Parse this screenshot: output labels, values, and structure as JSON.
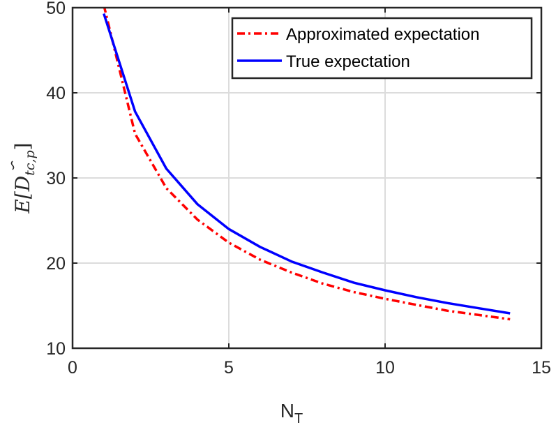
{
  "chart_data": {
    "type": "line",
    "title": "",
    "xlabel": "N",
    "xlabel_sub": "T",
    "ylabel": "E[",
    "ylabel_symbol": "D",
    "ylabel_sub": "tc,p",
    "ylabel_close": "]",
    "xlim": [
      0,
      15
    ],
    "ylim": [
      10,
      50
    ],
    "xticks": [
      0,
      5,
      10,
      15
    ],
    "yticks": [
      10,
      20,
      30,
      40,
      50
    ],
    "grid": true,
    "legend_position": "top-right",
    "x": [
      1,
      2,
      3,
      4,
      5,
      6,
      7,
      8,
      9,
      10,
      11,
      12,
      13,
      14
    ],
    "series": [
      {
        "name": "Approximated expectation",
        "color": "#ff0000",
        "style": "dash-dot",
        "values": [
          50.3,
          35.2,
          28.8,
          25.1,
          22.4,
          20.4,
          18.9,
          17.6,
          16.6,
          15.8,
          15.1,
          14.4,
          13.9,
          13.4
        ]
      },
      {
        "name": "True expectation",
        "color": "#0000ff",
        "style": "solid",
        "values": [
          49.3,
          37.8,
          31.1,
          26.9,
          24.0,
          21.9,
          20.2,
          18.9,
          17.7,
          16.8,
          16.0,
          15.3,
          14.7,
          14.1
        ]
      }
    ]
  }
}
